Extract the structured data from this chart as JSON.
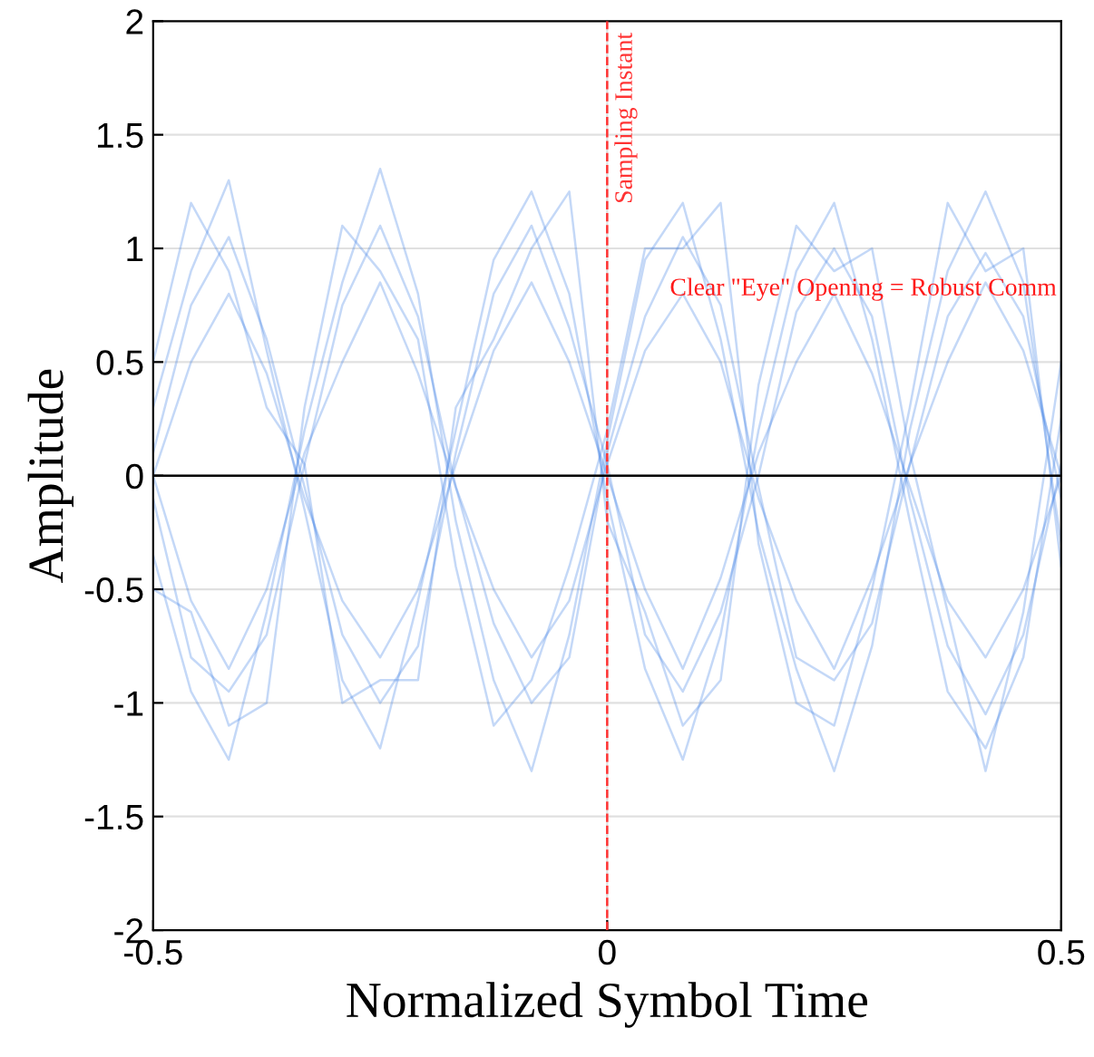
{
  "chart_data": {
    "type": "line",
    "xlabel": "Normalized Symbol Time",
    "ylabel": "Amplitude",
    "x": [
      -0.5,
      -0.4583,
      -0.4167,
      -0.375,
      -0.3333,
      -0.2917,
      -0.25,
      -0.2083,
      -0.1667,
      -0.125,
      -0.0833,
      -0.0417,
      0,
      0.0417,
      0.0833,
      0.125,
      0.1667,
      0.2083,
      0.25,
      0.2917,
      0.3333,
      0.375,
      0.4167,
      0.4583,
      0.5
    ],
    "series": [
      {
        "color": "#3d7fe6",
        "values": [
          0.1,
          0.75,
          1.05,
          0.6,
          -0.05,
          -0.7,
          -1.0,
          -0.75,
          0.1,
          0.8,
          1.1,
          0.65,
          0.05,
          -0.7,
          -0.95,
          -0.6,
          0.0,
          0.72,
          1.0,
          0.7,
          -0.1,
          -0.75,
          -1.05,
          -0.7,
          0.05
        ]
      },
      {
        "color": "#3d7fe6",
        "values": [
          -0.1,
          -0.8,
          -0.95,
          -0.7,
          0.05,
          0.75,
          1.1,
          0.7,
          -0.05,
          -0.65,
          -1.0,
          -0.8,
          0.1,
          0.7,
          1.05,
          0.75,
          -0.05,
          -0.8,
          -0.9,
          -0.65,
          0.05,
          0.7,
          0.98,
          0.7,
          -0.1
        ]
      },
      {
        "color": "#3d7fe6",
        "values": [
          0.3,
          0.9,
          1.3,
          0.55,
          -0.15,
          -0.9,
          -1.2,
          -0.55,
          0.2,
          0.95,
          1.25,
          0.8,
          -0.1,
          -0.85,
          -1.25,
          -0.7,
          0.2,
          0.9,
          1.2,
          0.6,
          -0.2,
          -0.95,
          -1.2,
          -0.8,
          0.25
        ]
      },
      {
        "color": "#3d7fe6",
        "values": [
          -0.35,
          -0.95,
          -1.25,
          -0.6,
          0.2,
          0.85,
          1.35,
          0.8,
          -0.2,
          -0.9,
          -1.3,
          -0.7,
          0.15,
          0.95,
          1.2,
          0.6,
          -0.25,
          -0.85,
          -1.3,
          -0.75,
          0.2,
          0.9,
          1.25,
          0.85,
          -0.3
        ]
      },
      {
        "color": "#3d7fe6",
        "values": [
          0.0,
          0.5,
          0.8,
          0.45,
          -0.1,
          -0.55,
          -0.8,
          -0.5,
          0.05,
          0.55,
          0.85,
          0.5,
          0.0,
          -0.5,
          -0.85,
          -0.45,
          0.1,
          0.5,
          0.8,
          0.45,
          -0.05,
          -0.55,
          -0.8,
          -0.5,
          0.0
        ]
      },
      {
        "color": "#3d7fe6",
        "values": [
          0.0,
          -0.55,
          -0.85,
          -0.5,
          0.1,
          0.5,
          0.85,
          0.45,
          -0.05,
          -0.5,
          -0.8,
          -0.55,
          0.05,
          0.55,
          0.8,
          0.5,
          -0.1,
          -0.55,
          -0.85,
          -0.45,
          0.05,
          0.5,
          0.85,
          0.55,
          0.0
        ]
      },
      {
        "color": "#3d7fe6",
        "values": [
          0.5,
          1.2,
          0.9,
          0.3,
          0.05,
          -1.0,
          -0.9,
          -0.9,
          0.3,
          0.6,
          1.0,
          1.25,
          -0.2,
          -0.6,
          -1.1,
          -0.9,
          0.4,
          1.1,
          0.9,
          1.0,
          0.1,
          -0.6,
          -1.3,
          -0.6,
          0.5
        ]
      },
      {
        "color": "#3d7fe6",
        "values": [
          -0.5,
          -0.6,
          -1.1,
          -1.0,
          0.3,
          1.1,
          0.9,
          0.6,
          -0.4,
          -1.1,
          -0.9,
          -0.4,
          0.2,
          1.0,
          1.0,
          1.2,
          -0.3,
          -1.0,
          -1.1,
          -0.5,
          0.3,
          1.2,
          0.9,
          1.0,
          -0.4
        ]
      }
    ],
    "xlim": [
      -0.5,
      0.5
    ],
    "xticks": [
      -0.5,
      0,
      0.5
    ],
    "ylim": [
      -2,
      2
    ],
    "yticks": [
      -2,
      -1.5,
      -1,
      -0.5,
      0,
      0.5,
      1,
      1.5,
      2
    ],
    "ref_lines": [
      {
        "axis": "x",
        "value": 0,
        "label": "Sampling Instant",
        "color": "#ff3333",
        "line_style": "dashed"
      },
      {
        "axis": "y",
        "value": 0,
        "color": "#000000",
        "line_style": "solid"
      }
    ],
    "annotations": [
      "Clear \"Eye\" Opening = Robust Comm"
    ],
    "grid": true,
    "marker": "none",
    "line_style": "solid"
  }
}
